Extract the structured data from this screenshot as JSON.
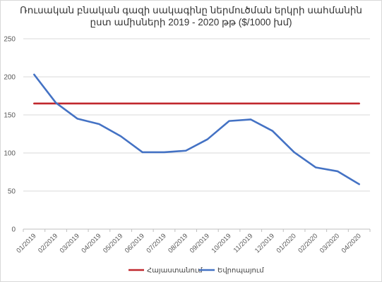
{
  "chart_data": {
    "type": "line",
    "title": "Ռուսական բնական գազի սակագինը ներմուծման երկրի սահմանին",
    "subtitle": "ըստ ամիսների 2019 - 2020 թթ ($/1000 խմ)",
    "xlabel": "",
    "ylabel": "",
    "ylim": [
      0,
      250
    ],
    "yticks": [
      0,
      50,
      100,
      150,
      200,
      250
    ],
    "grid": true,
    "legend_position": "bottom",
    "categories": [
      "01/2019",
      "02/2019",
      "03/2019",
      "04/2019",
      "05/2019",
      "06/2019",
      "07/2019",
      "08/2019",
      "09/2019",
      "10/2019",
      "11/2019",
      "12/2019",
      "01/2020",
      "02/2020",
      "03/2020",
      "04/2020"
    ],
    "series": [
      {
        "name": "Հայաստանում",
        "color": "#c0272d",
        "values": [
          165,
          165,
          165,
          165,
          165,
          165,
          165,
          165,
          165,
          165,
          165,
          165,
          165,
          165,
          165,
          165
        ]
      },
      {
        "name": "Եվրոպայում",
        "color": "#4472c4",
        "values": [
          203,
          166,
          145,
          138,
          122,
          101,
          101,
          103,
          118,
          142,
          144,
          129,
          101,
          81,
          76,
          59
        ]
      }
    ]
  }
}
